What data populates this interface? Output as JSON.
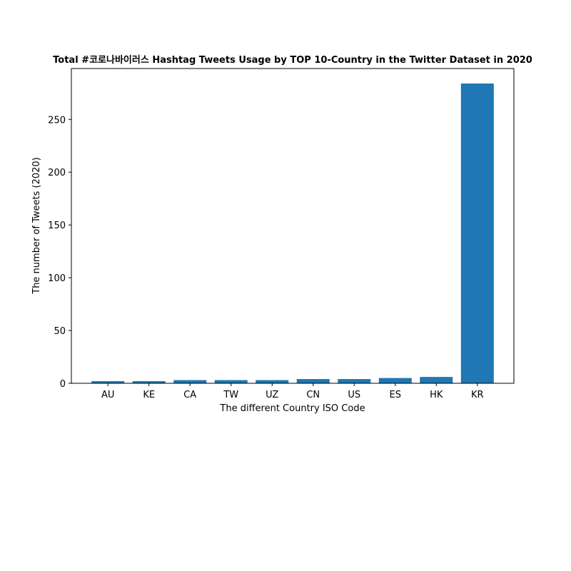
{
  "chart_data": {
    "type": "bar",
    "title": "Total #코로나바이러스 Hashtag Tweets Usage by TOP 10-Country in the Twitter Dataset in 2020",
    "xlabel": "The different Country ISO Code",
    "ylabel": "The number of Tweets (2020)",
    "categories": [
      "AU",
      "KE",
      "CA",
      "TW",
      "UZ",
      "CN",
      "US",
      "ES",
      "HK",
      "KR"
    ],
    "values": [
      2,
      2,
      3,
      3,
      3,
      4,
      4,
      5,
      6,
      284
    ],
    "ylim": [
      0,
      298.2
    ],
    "yticks": [
      0,
      50,
      100,
      150,
      200,
      250
    ],
    "bar_color": "#1f77b4",
    "grid": false,
    "legend": "none"
  }
}
